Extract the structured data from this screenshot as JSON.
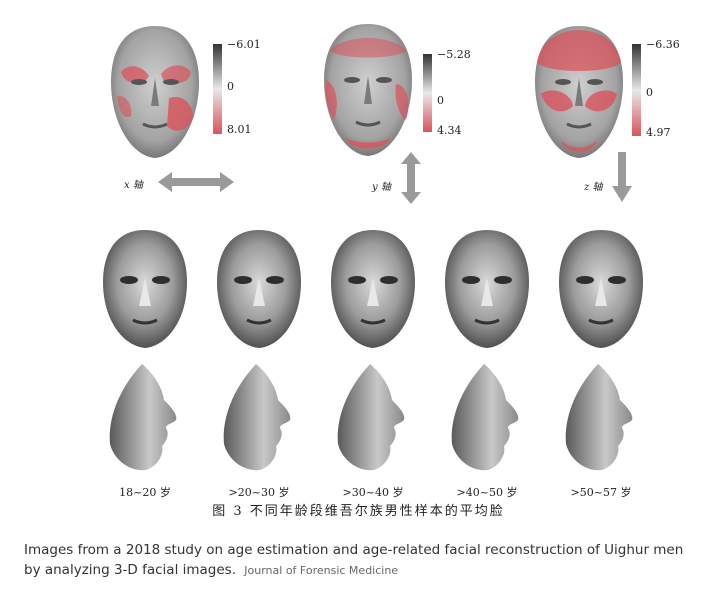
{
  "heatmaps": [
    {
      "axis_label": "x 轴",
      "scale_top": "−6.01",
      "scale_mid": "0",
      "scale_bottom": "8.01"
    },
    {
      "axis_label": "y 轴",
      "scale_top": "−5.28",
      "scale_mid": "0",
      "scale_bottom": "4.34"
    },
    {
      "axis_label": "z 轴",
      "scale_top": "−6.36",
      "scale_mid": "0",
      "scale_bottom": "4.97"
    }
  ],
  "age_groups": [
    "18~20 岁",
    ">20~30 岁",
    ">30~40 岁",
    ">40~50 岁",
    ">50~57 岁"
  ],
  "figure_caption": "图 3  不同年龄段维吾尔族男性样本的平均脸",
  "caption": {
    "text": "Images from a 2018 study on age estimation and age-related facial reconstruction of Uighur men by analyzing 3-D facial images.",
    "source": "Journal of Forensic Medicine"
  },
  "colors": {
    "heat_red": "#d9535c",
    "scale_gray": "#444444",
    "arrow_gray": "#9a9a9a"
  }
}
